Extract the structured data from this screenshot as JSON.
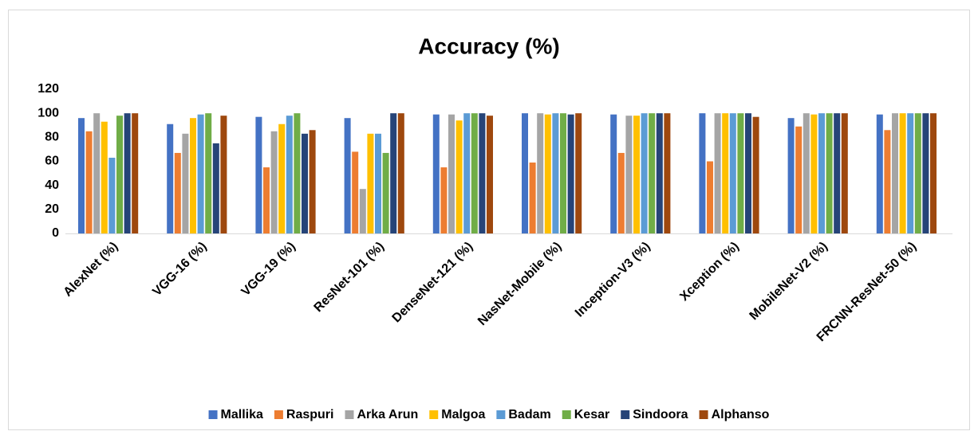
{
  "chart_data": {
    "type": "bar",
    "title": "Accuracy (%)",
    "categories": [
      "AlexNet (%)",
      "VGG-16 (%)",
      "VGG-19 (%)",
      "ResNet-101 (%)",
      "DenseNet-121 (%)",
      "NasNet-Mobile (%)",
      "Inception-V3 (%)",
      "Xception (%)",
      "MobileNet-V2 (%)",
      "FRCNN-ResNet-50 (%)"
    ],
    "series": [
      {
        "name": "Mallika",
        "color": "#4472c4",
        "values": [
          96,
          91,
          97,
          96,
          99,
          100,
          99,
          100,
          96,
          99
        ]
      },
      {
        "name": "Raspuri",
        "color": "#ed7d31",
        "values": [
          85,
          67,
          55,
          68,
          55,
          59,
          67,
          60,
          89,
          86
        ]
      },
      {
        "name": "Arka Arun",
        "color": "#a5a5a5",
        "values": [
          100,
          83,
          85,
          37,
          99,
          100,
          98,
          100,
          100,
          100
        ]
      },
      {
        "name": "Malgoa",
        "color": "#ffc000",
        "values": [
          93,
          96,
          91,
          83,
          94,
          99,
          98,
          100,
          99,
          100
        ]
      },
      {
        "name": "Badam",
        "color": "#5b9bd5",
        "values": [
          63,
          99,
          98,
          83,
          100,
          100,
          100,
          100,
          100,
          100
        ]
      },
      {
        "name": "Kesar",
        "color": "#70ad47",
        "values": [
          98,
          100,
          100,
          67,
          100,
          100,
          100,
          100,
          100,
          100
        ]
      },
      {
        "name": "Sindoora",
        "color": "#264478",
        "values": [
          100,
          75,
          83,
          100,
          100,
          99,
          100,
          100,
          100,
          100
        ]
      },
      {
        "name": "Alphanso",
        "color": "#9e480e",
        "values": [
          100,
          98,
          86,
          100,
          98,
          100,
          100,
          97,
          100,
          100
        ]
      }
    ],
    "ylim": [
      0,
      120
    ],
    "yticks": [
      0,
      20,
      40,
      60,
      80,
      100,
      120
    ],
    "grid": false,
    "legend": "bottom"
  }
}
